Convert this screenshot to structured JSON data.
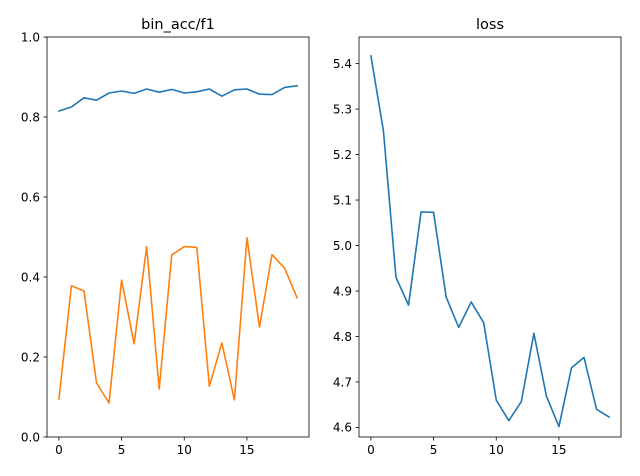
{
  "chart_data": [
    {
      "type": "line",
      "title": "bin_acc/f1",
      "xlabel": "",
      "ylabel": "",
      "xlim": [
        -0.95,
        19.95
      ],
      "ylim": [
        0.0,
        1.0
      ],
      "xticks": [
        0,
        5,
        10,
        15
      ],
      "xtick_labels": [
        "0",
        "5",
        "10",
        "15"
      ],
      "yticks": [
        0.0,
        0.2,
        0.4,
        0.6,
        0.8,
        1.0
      ],
      "ytick_labels": [
        "0.0",
        "0.2",
        "0.4",
        "0.6",
        "0.8",
        "1.0"
      ],
      "grid": false,
      "series": [
        {
          "color": "#1f77b4",
          "x": [
            0,
            1,
            2,
            3,
            4,
            5,
            6,
            7,
            8,
            9,
            10,
            11,
            12,
            13,
            14,
            15,
            16,
            17,
            18,
            19
          ],
          "values": [
            0.815,
            0.825,
            0.848,
            0.842,
            0.86,
            0.865,
            0.859,
            0.87,
            0.862,
            0.869,
            0.86,
            0.863,
            0.87,
            0.852,
            0.868,
            0.87,
            0.857,
            0.856,
            0.874,
            0.878
          ]
        },
        {
          "color": "#ff7f0e",
          "x": [
            0,
            1,
            2,
            3,
            4,
            5,
            6,
            7,
            8,
            9,
            10,
            11,
            12,
            13,
            14,
            15,
            16,
            17,
            18,
            19
          ],
          "values": [
            0.095,
            0.378,
            0.365,
            0.135,
            0.085,
            0.392,
            0.233,
            0.476,
            0.12,
            0.455,
            0.476,
            0.474,
            0.127,
            0.235,
            0.093,
            0.498,
            0.275,
            0.456,
            0.422,
            0.348
          ]
        }
      ]
    },
    {
      "type": "line",
      "title": "loss",
      "xlabel": "",
      "ylabel": "",
      "xlim": [
        -0.95,
        19.95
      ],
      "ylim": [
        4.579,
        5.4585
      ],
      "xticks": [
        0,
        5,
        10,
        15
      ],
      "xtick_labels": [
        "0",
        "5",
        "10",
        "15"
      ],
      "yticks": [
        4.6,
        4.7,
        4.8,
        4.9,
        5.0,
        5.1,
        5.2,
        5.3,
        5.4
      ],
      "ytick_labels": [
        "4.6",
        "4.7",
        "4.8",
        "4.9",
        "5.0",
        "5.1",
        "5.2",
        "5.3",
        "5.4"
      ],
      "grid": false,
      "series": [
        {
          "color": "#1f77b4",
          "x": [
            0,
            1,
            2,
            3,
            4,
            5,
            6,
            7,
            8,
            9,
            10,
            11,
            12,
            13,
            14,
            15,
            16,
            17,
            18,
            19
          ],
          "values": [
            5.417,
            5.252,
            4.93,
            4.869,
            5.074,
            5.073,
            4.887,
            4.82,
            4.876,
            4.83,
            4.66,
            4.615,
            4.657,
            4.807,
            4.669,
            4.602,
            4.731,
            4.754,
            4.64,
            4.623
          ]
        }
      ]
    }
  ]
}
